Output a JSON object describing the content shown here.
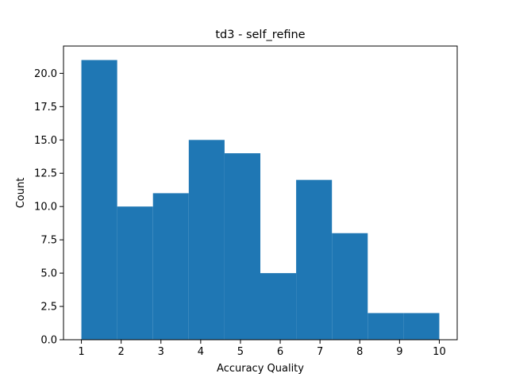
{
  "chart_data": {
    "type": "bar",
    "title": "td3 - self_refine",
    "xlabel": "Accuracy Quality",
    "ylabel": "Count",
    "bin_edges": [
      1,
      1.9,
      2.8,
      3.7,
      4.6,
      5.5,
      6.4,
      7.3,
      8.2,
      9.1,
      10
    ],
    "values": [
      21,
      10,
      11,
      15,
      14,
      5,
      12,
      8,
      2,
      2
    ],
    "xlim": [
      0.55,
      10.45
    ],
    "ylim": [
      0,
      22.05
    ],
    "xticks": [
      "1",
      "2",
      "3",
      "4",
      "5",
      "6",
      "7",
      "8",
      "9",
      "10"
    ],
    "yticks": [
      "0.0",
      "2.5",
      "5.0",
      "7.5",
      "10.0",
      "12.5",
      "15.0",
      "17.5",
      "20.0"
    ],
    "bar_color": "#1f77b4",
    "grid": false,
    "legend": false
  }
}
